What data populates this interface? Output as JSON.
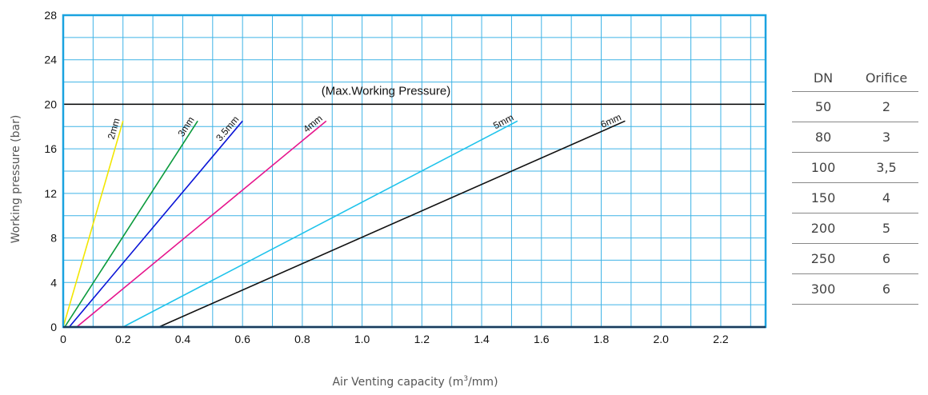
{
  "chart_data": {
    "type": "line",
    "title": "",
    "xlabel": "Air Venting capacity (m",
    "xlabel_sup": "3",
    "xlabel_tail": "/mm)",
    "ylabel": "Working pressure (bar)",
    "xlim": [
      0,
      2.35
    ],
    "ylim": [
      0,
      28
    ],
    "x_ticks": [
      "0",
      "0.2",
      "0.4",
      "0.6",
      "0.8",
      "1.0",
      "1.2",
      "1.4",
      "1.6",
      "1.8",
      "2.0",
      "2.2"
    ],
    "x_tick_values": [
      0,
      0.2,
      0.4,
      0.6,
      0.8,
      1.0,
      1.2,
      1.4,
      1.6,
      1.8,
      2.0,
      2.2
    ],
    "y_ticks": [
      "0",
      "4",
      "8",
      "12",
      "16",
      "20",
      "24",
      "28"
    ],
    "y_tick_values": [
      0,
      4,
      8,
      12,
      16,
      20,
      24,
      28
    ],
    "grid": true,
    "reference_line": {
      "y": 20,
      "label": "(Max.Working Pressure)"
    },
    "series": [
      {
        "name": "2mm",
        "color": "#f2e600",
        "x": [
          0.0,
          0.2
        ],
        "y": [
          0,
          18.5
        ]
      },
      {
        "name": "3mm",
        "color": "#0a9a3c",
        "x": [
          0.005,
          0.45
        ],
        "y": [
          0,
          18.5
        ]
      },
      {
        "name": "3.5mm",
        "color": "#0a14d6",
        "x": [
          0.02,
          0.6
        ],
        "y": [
          0,
          18.5
        ]
      },
      {
        "name": "4mm",
        "color": "#e6148c",
        "x": [
          0.045,
          0.88
        ],
        "y": [
          0,
          18.5
        ]
      },
      {
        "name": "5mm",
        "color": "#1ec3eb",
        "x": [
          0.2,
          1.52
        ],
        "y": [
          0,
          18.5
        ]
      },
      {
        "name": "6mm",
        "color": "#111111",
        "x": [
          0.32,
          1.88
        ],
        "y": [
          0,
          18.5
        ]
      }
    ],
    "frame_color": "#1aa3e0",
    "grid_color": "#3fb3e6"
  },
  "table": {
    "headers": [
      "DN",
      "Orifice"
    ],
    "rows": [
      [
        "50",
        "2"
      ],
      [
        "80",
        "3"
      ],
      [
        "100",
        "3,5"
      ],
      [
        "150",
        "4"
      ],
      [
        "200",
        "5"
      ],
      [
        "250",
        "6"
      ],
      [
        "300",
        "6"
      ]
    ]
  }
}
